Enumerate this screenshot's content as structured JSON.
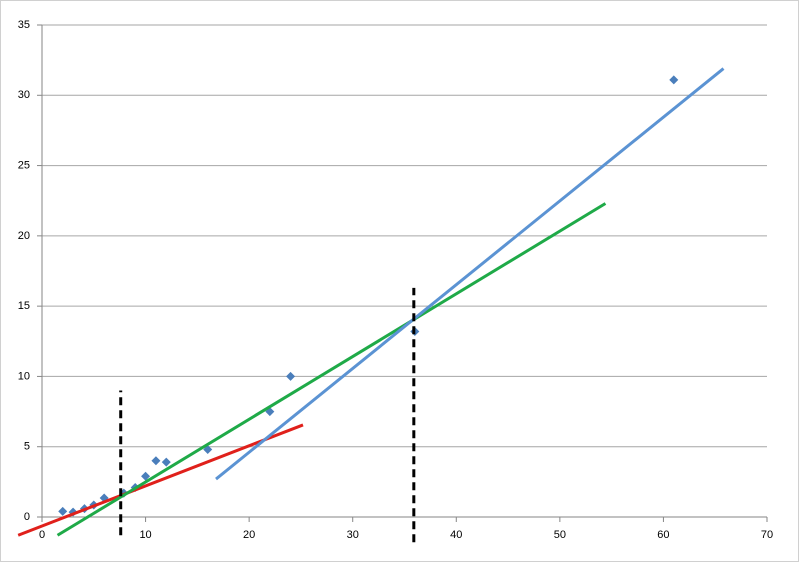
{
  "chart_data": {
    "type": "scatter",
    "x": [
      2,
      3,
      4.1,
      5,
      6,
      7.9,
      9,
      10,
      11,
      12,
      16,
      22,
      24,
      36,
      61
    ],
    "values": [
      0.4,
      0.35,
      0.6,
      0.85,
      1.35,
      1.7,
      2.1,
      2.9,
      4,
      3.9,
      4.8,
      7.5,
      10,
      13.2,
      31.1
    ],
    "color": "#4a7ebb",
    "xlim": [
      0,
      70
    ],
    "xticks": [
      0,
      10,
      20,
      30,
      40,
      50,
      60,
      70
    ],
    "ylim": [
      0,
      35
    ],
    "yticks": [
      0,
      5,
      10,
      15,
      20,
      25,
      30,
      35
    ],
    "grid": true,
    "trend_lines": [
      {
        "color": "#e0201b",
        "x": [
          -2.3,
          25.2
        ],
        "y": [
          -1.3,
          6.55
        ]
      },
      {
        "color": "#1faa48",
        "x": [
          1.5,
          54.4
        ],
        "y": [
          -1.3,
          22.3
        ]
      },
      {
        "color": "#5b93d3",
        "x": [
          16.8,
          65.8
        ],
        "y": [
          2.7,
          31.9
        ]
      }
    ],
    "dashed_lines": [
      {
        "color": "#000000",
        "x": [
          7.6,
          7.6
        ],
        "y": [
          -1.3,
          9
        ]
      },
      {
        "color": "#000000",
        "x": [
          35.9,
          35.9
        ],
        "y": [
          -1.8,
          16.3
        ]
      }
    ]
  }
}
